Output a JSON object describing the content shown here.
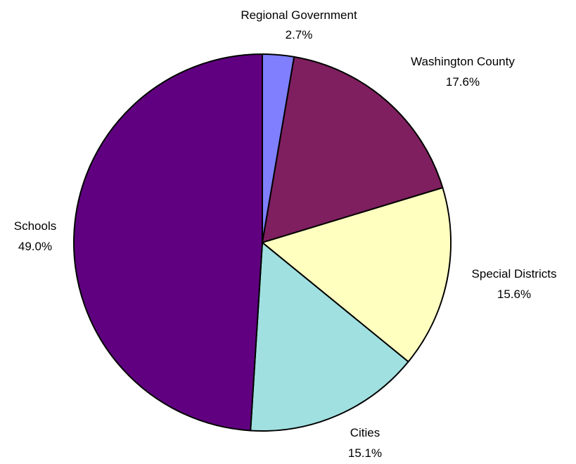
{
  "chart_data": {
    "type": "pie",
    "title": "",
    "slices": [
      {
        "label": "Regional Government",
        "value": 2.7,
        "value_label": "2.7%",
        "color": "#8080ff"
      },
      {
        "label": "Washington County",
        "value": 17.6,
        "value_label": "17.6%",
        "color": "#7f1f5f"
      },
      {
        "label": "Special Districts",
        "value": 15.6,
        "value_label": "15.6%",
        "color": "#ffffc0"
      },
      {
        "label": "Cities",
        "value": 15.1,
        "value_label": "15.1%",
        "color": "#a0e0e0"
      },
      {
        "label": "Schools",
        "value": 49.0,
        "value_label": "49.0%",
        "color": "#600080"
      }
    ],
    "start": "12 o'clock",
    "direction": "clockwise",
    "legend": "none",
    "labels": "outside"
  }
}
